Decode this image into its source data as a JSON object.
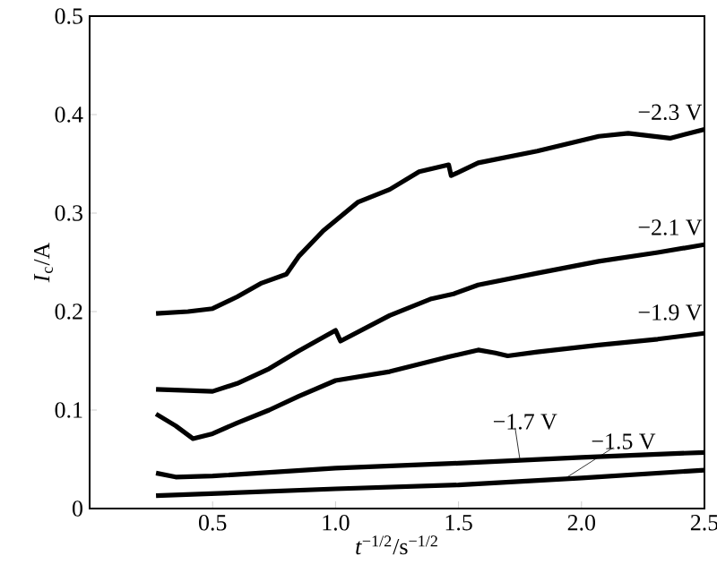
{
  "chart_data": {
    "type": "line",
    "xlabel": "*t*$^{−1/2}$/s$^{−1/2}$",
    "ylabel": "*I*$_{c}$/A",
    "xlim": [
      0,
      2.5
    ],
    "ylim": [
      0,
      0.5
    ],
    "xticks": [
      0.5,
      {
        "value": 1,
        "label": "1.0"
      },
      1.5,
      {
        "value": 2,
        "label": "2.0"
      },
      2.5
    ],
    "yticks": [
      0,
      0.1,
      0.2,
      0.3,
      0.4,
      0.5
    ],
    "grid": false,
    "legend": false,
    "marker": "none",
    "line_style": "solid",
    "series": [
      {
        "name": "−2.3 V",
        "color": "#000000",
        "x": [
          0.27,
          0.4,
          0.5,
          0.6,
          0.7,
          0.8,
          0.85,
          0.95,
          1.09,
          1.22,
          1.34,
          1.46,
          1.47,
          1.58,
          1.82,
          2.07,
          2.19,
          2.36,
          2.5
        ],
        "values": [
          0.198,
          0.2,
          0.203,
          0.215,
          0.229,
          0.238,
          0.256,
          0.282,
          0.311,
          0.324,
          0.342,
          0.349,
          0.338,
          0.351,
          0.363,
          0.378,
          0.381,
          0.376,
          0.385
        ]
      },
      {
        "name": "−2.1 V",
        "color": "#000000",
        "x": [
          0.27,
          0.5,
          0.6,
          0.73,
          0.85,
          1.0,
          1.02,
          1.22,
          1.39,
          1.48,
          1.58,
          1.82,
          2.07,
          2.31,
          2.5
        ],
        "values": [
          0.121,
          0.119,
          0.127,
          0.142,
          0.16,
          0.181,
          0.17,
          0.196,
          0.213,
          0.218,
          0.227,
          0.239,
          0.251,
          0.26,
          0.268
        ]
      },
      {
        "name": "−1.9 V",
        "color": "#000000",
        "x": [
          0.27,
          0.35,
          0.42,
          0.5,
          0.6,
          0.73,
          0.85,
          1.0,
          1.22,
          1.46,
          1.58,
          1.65,
          1.7,
          1.82,
          2.07,
          2.31,
          2.5
        ],
        "values": [
          0.096,
          0.084,
          0.071,
          0.076,
          0.087,
          0.1,
          0.114,
          0.13,
          0.139,
          0.154,
          0.161,
          0.158,
          0.155,
          0.159,
          0.166,
          0.172,
          0.178
        ]
      },
      {
        "name": "−1.7 V",
        "color": "#000000",
        "x": [
          0.27,
          0.35,
          0.5,
          1.0,
          1.5,
          2.0,
          2.5
        ],
        "values": [
          0.036,
          0.032,
          0.033,
          0.041,
          0.046,
          0.052,
          0.057
        ]
      },
      {
        "name": "−1.5 V",
        "color": "#000000",
        "x": [
          0.27,
          1.0,
          1.5,
          2.0,
          2.5
        ],
        "values": [
          0.013,
          0.02,
          0.024,
          0.031,
          0.039
        ]
      }
    ]
  }
}
